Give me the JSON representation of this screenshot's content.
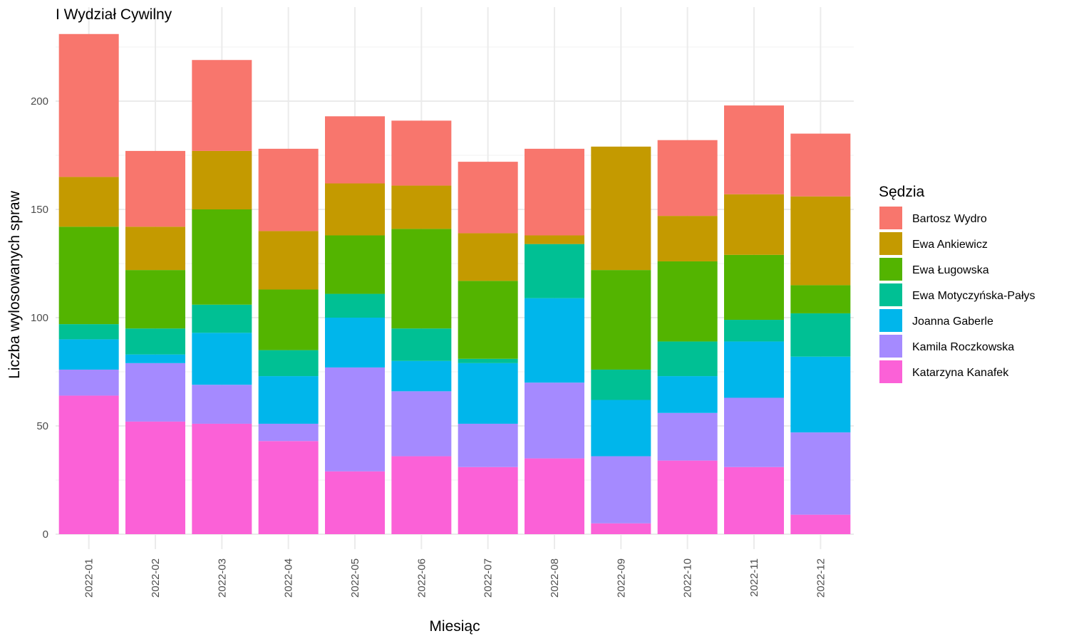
{
  "chart_data": {
    "type": "bar",
    "stacked": true,
    "title": "I Wydział Cywilny",
    "xlabel": "Miesiąc",
    "ylabel": "Liczba wylosowanych spraw",
    "ylim": [
      0,
      233
    ],
    "yticks": [
      0,
      50,
      100,
      150,
      200
    ],
    "grid": true,
    "legend_title": "Sędzia",
    "legend_position": "right",
    "categories": [
      "2022-01",
      "2022-02",
      "2022-03",
      "2022-04",
      "2022-05",
      "2022-06",
      "2022-07",
      "2022-08",
      "2022-09",
      "2022-10",
      "2022-11",
      "2022-12"
    ],
    "series": [
      {
        "name": "Katarzyna Kanafek",
        "color": "#FB61D7",
        "values": [
          64,
          52,
          51,
          43,
          29,
          36,
          31,
          35,
          5,
          34,
          31,
          9
        ]
      },
      {
        "name": "Kamila Roczkowska",
        "color": "#A58AFF",
        "values": [
          12,
          27,
          18,
          8,
          48,
          30,
          20,
          35,
          31,
          22,
          32,
          38
        ]
      },
      {
        "name": "Joanna Gaberle",
        "color": "#00B6EB",
        "values": [
          14,
          4,
          24,
          22,
          23,
          14,
          28,
          39,
          26,
          17,
          26,
          35
        ]
      },
      {
        "name": "Ewa Motyczyńska-Pałys",
        "color": "#00C094",
        "values": [
          7,
          12,
          13,
          12,
          11,
          15,
          2,
          25,
          14,
          16,
          10,
          20
        ]
      },
      {
        "name": "Ewa Ługowska",
        "color": "#53B400",
        "values": [
          45,
          27,
          44,
          28,
          27,
          46,
          36,
          0,
          46,
          37,
          30,
          13
        ]
      },
      {
        "name": "Ewa Ankiewicz",
        "color": "#C49A00",
        "values": [
          23,
          20,
          27,
          27,
          24,
          20,
          22,
          4,
          57,
          21,
          28,
          41
        ]
      },
      {
        "name": "Bartosz Wydro",
        "color": "#F8766D",
        "values": [
          66,
          35,
          42,
          38,
          31,
          30,
          33,
          40,
          0,
          35,
          41,
          29
        ]
      }
    ],
    "legend_order": [
      "Bartosz Wydro",
      "Ewa Ankiewicz",
      "Ewa Ługowska",
      "Ewa Motyczyńska-Pałys",
      "Joanna Gaberle",
      "Kamila Roczkowska",
      "Katarzyna Kanafek"
    ]
  }
}
